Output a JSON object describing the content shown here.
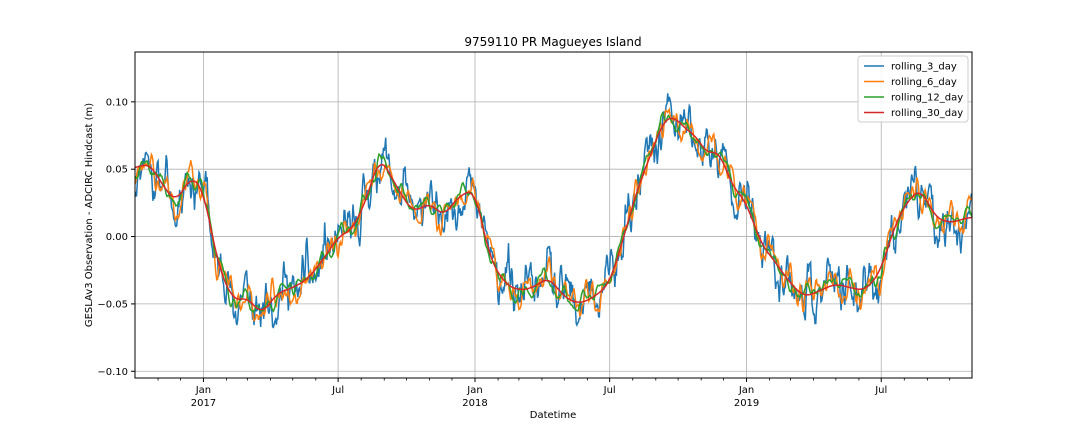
{
  "chart_data": {
    "type": "line",
    "title": "9759110 PR Magueyes Island",
    "xlabel": "Datetime",
    "ylabel": "GESLAv3 Observation - ADCIRC Hindcast (m)",
    "xlim": [
      "2016-10-01",
      "2019-10-31"
    ],
    "ylim": [
      -0.105,
      0.137
    ],
    "grid": true,
    "legend_position": "top-right",
    "yticks": [
      {
        "value": -0.1,
        "label": "−0.10"
      },
      {
        "value": -0.05,
        "label": "−0.05"
      },
      {
        "value": 0.0,
        "label": "0.00"
      },
      {
        "value": 0.05,
        "label": "0.05"
      },
      {
        "value": 0.1,
        "label": "0.10"
      }
    ],
    "xticks_major": [
      {
        "date": "2017-01-01",
        "label": "Jan",
        "sublabel": "2017"
      },
      {
        "date": "2017-07-01",
        "label": "Jul",
        "sublabel": ""
      },
      {
        "date": "2018-01-01",
        "label": "Jan",
        "sublabel": "2018"
      },
      {
        "date": "2018-07-01",
        "label": "Jul",
        "sublabel": ""
      },
      {
        "date": "2019-01-01",
        "label": "Jan",
        "sublabel": "2019"
      },
      {
        "date": "2019-07-01",
        "label": "Jul",
        "sublabel": ""
      }
    ],
    "xticks_minor": [
      "2016-11-01",
      "2016-12-01",
      "2017-02-01",
      "2017-03-01",
      "2017-04-01",
      "2017-05-01",
      "2017-06-01",
      "2017-08-01",
      "2017-09-01",
      "2017-10-01",
      "2017-11-01",
      "2017-12-01",
      "2018-02-01",
      "2018-03-01",
      "2018-04-01",
      "2018-05-01",
      "2018-06-01",
      "2018-08-01",
      "2018-09-01",
      "2018-10-01",
      "2018-11-01",
      "2018-12-01",
      "2019-02-01",
      "2019-03-01",
      "2019-04-01",
      "2019-05-01",
      "2019-06-01",
      "2019-08-01",
      "2019-09-01",
      "2019-10-01"
    ],
    "base_trend": {
      "x": [
        "2016-10-01",
        "2016-10-20",
        "2016-11-05",
        "2016-11-25",
        "2016-12-15",
        "2017-01-01",
        "2017-01-20",
        "2017-02-10",
        "2017-03-01",
        "2017-03-20",
        "2017-04-10",
        "2017-05-01",
        "2017-05-20",
        "2017-06-10",
        "2017-07-01",
        "2017-07-20",
        "2017-08-10",
        "2017-08-25",
        "2017-09-10",
        "2017-09-25",
        "2017-10-10",
        "2017-11-01",
        "2017-11-20",
        "2017-12-10",
        "2018-01-01",
        "2018-01-20",
        "2018-02-10",
        "2018-03-01",
        "2018-03-20",
        "2018-04-10",
        "2018-05-01",
        "2018-05-20",
        "2018-06-10",
        "2018-07-01",
        "2018-07-20",
        "2018-08-10",
        "2018-08-25",
        "2018-09-10",
        "2018-09-25",
        "2018-10-10",
        "2018-10-25",
        "2018-11-10",
        "2018-11-25",
        "2018-12-10",
        "2019-01-01",
        "2019-01-20",
        "2019-02-10",
        "2019-03-01",
        "2019-03-20",
        "2019-04-10",
        "2019-05-01",
        "2019-05-20",
        "2019-06-10",
        "2019-07-01",
        "2019-07-20",
        "2019-08-10",
        "2019-08-25",
        "2019-09-10",
        "2019-10-01",
        "2019-10-31"
      ],
      "y": [
        0.05,
        0.055,
        0.04,
        0.025,
        0.045,
        0.035,
        -0.02,
        -0.048,
        -0.045,
        -0.058,
        -0.042,
        -0.038,
        -0.032,
        -0.018,
        0.0,
        0.005,
        0.03,
        0.06,
        0.045,
        0.03,
        0.018,
        0.025,
        0.015,
        0.03,
        0.035,
        -0.015,
        -0.035,
        -0.04,
        -0.038,
        -0.03,
        -0.045,
        -0.05,
        -0.045,
        -0.035,
        0.0,
        0.04,
        0.06,
        0.085,
        0.09,
        0.08,
        0.075,
        0.06,
        0.065,
        0.04,
        0.025,
        -0.005,
        -0.02,
        -0.035,
        -0.045,
        -0.04,
        -0.035,
        -0.038,
        -0.04,
        -0.025,
        0.01,
        0.03,
        0.035,
        0.015,
        0.01,
        0.015
      ]
    },
    "series": [
      {
        "name": "rolling_3_day",
        "color": "#1f77b4",
        "window_days": 3,
        "noise_amp": 0.016,
        "seed": 11
      },
      {
        "name": "rolling_6_day",
        "color": "#ff7f0e",
        "window_days": 6,
        "noise_amp": 0.012,
        "seed": 23
      },
      {
        "name": "rolling_12_day",
        "color": "#2ca02c",
        "window_days": 12,
        "noise_amp": 0.008,
        "seed": 37
      },
      {
        "name": "rolling_30_day",
        "color": "#d62728",
        "window_days": 30,
        "noise_amp": 0.002,
        "seed": 51
      }
    ]
  }
}
